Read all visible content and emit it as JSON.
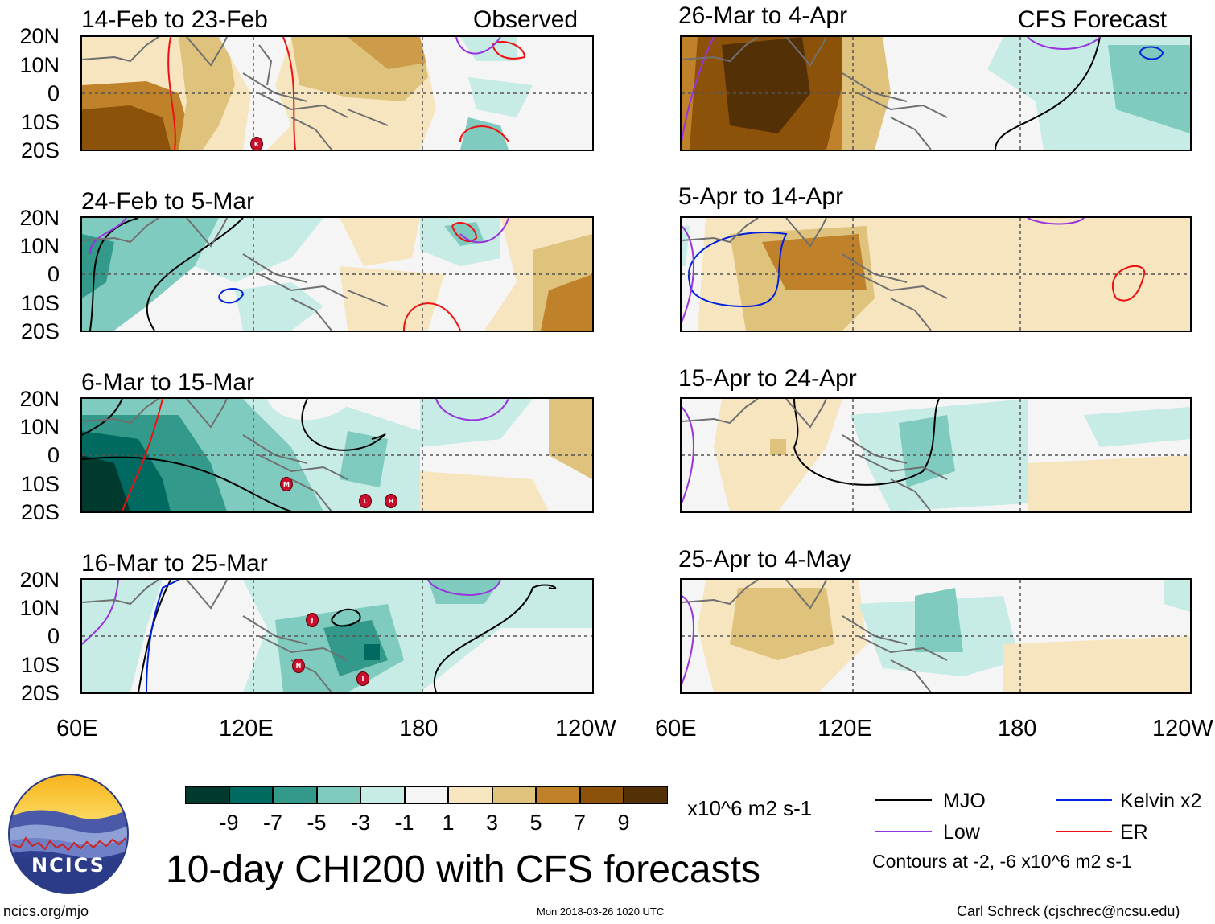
{
  "labels": {
    "observed": "Observed",
    "forecast": "CFS Forecast"
  },
  "lat_ticks": [
    "20N",
    "10N",
    "0",
    "10S",
    "20S"
  ],
  "lon_ticks": [
    "60E",
    "120E",
    "180",
    "120W"
  ],
  "panels": [
    {
      "title": "14-Feb to 23-Feb",
      "group": "observed"
    },
    {
      "title": "24-Feb to 5-Mar",
      "group": "observed"
    },
    {
      "title": "6-Mar to 15-Mar",
      "group": "observed"
    },
    {
      "title": "16-Mar to 25-Mar",
      "group": "observed"
    },
    {
      "title": "26-Mar to 4-Apr",
      "group": "forecast"
    },
    {
      "title": "5-Apr to 14-Apr",
      "group": "forecast"
    },
    {
      "title": "15-Apr to 24-Apr",
      "group": "forecast"
    },
    {
      "title": "25-Apr to 4-May",
      "group": "forecast"
    }
  ],
  "colorbar": {
    "colors": [
      "#00392d",
      "#006a60",
      "#33998b",
      "#80cbbf",
      "#c6ece5",
      "#f5f5f5",
      "#f6e5bf",
      "#dfc27c",
      "#bf822b",
      "#8c520a",
      "#543006"
    ],
    "ticks": [
      "-9",
      "-7",
      "-5",
      "-3",
      "-1",
      "1",
      "3",
      "5",
      "7",
      "9"
    ],
    "units": "x10^6 m2 s-1"
  },
  "legend": {
    "items": [
      {
        "label": "MJO",
        "color": "#000000"
      },
      {
        "label": "Kelvin x2",
        "color": "#0022dd"
      },
      {
        "label": "Low",
        "color": "#9933dd"
      },
      {
        "label": "ER",
        "color": "#ee1111"
      }
    ],
    "note": "Contours at -2, -6 x10^6 m2 s-1"
  },
  "main_title": "10-day CHI200 with CFS forecasts",
  "footer": {
    "url": "ncics.org/mjo",
    "timestamp": "Mon 2018-03-26 1020 UTC",
    "author": "Carl Schreck (cjschrec@ncsu.edu)"
  },
  "logo_text": "NCICS",
  "storms": [
    {
      "panel": 0,
      "letter": "K"
    },
    {
      "panel": 2,
      "letter": "M"
    },
    {
      "panel": 2,
      "letter": "L"
    },
    {
      "panel": 2,
      "letter": "H"
    },
    {
      "panel": 3,
      "letter": "J"
    },
    {
      "panel": 3,
      "letter": "N"
    },
    {
      "panel": 3,
      "letter": "I"
    }
  ]
}
